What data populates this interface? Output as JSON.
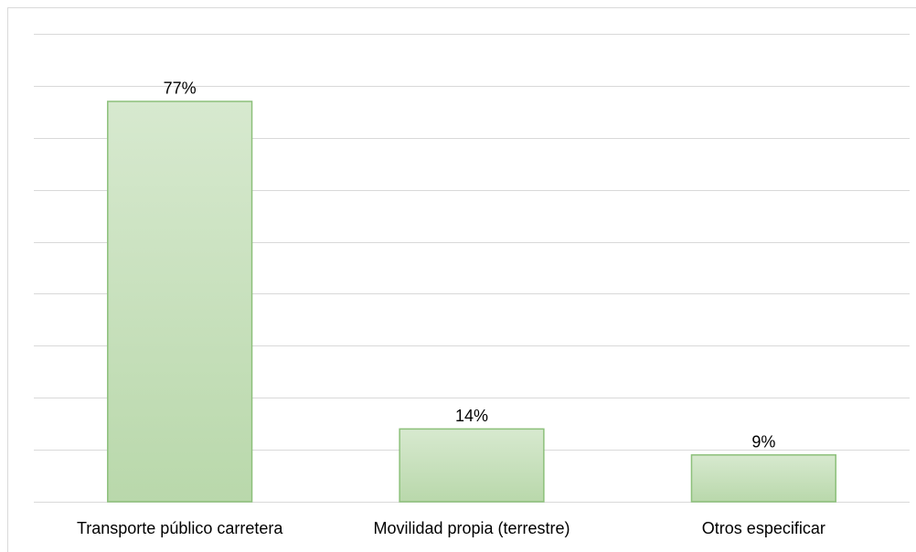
{
  "chart_data": {
    "type": "bar",
    "categories": [
      "Transporte público carretera",
      "Movilidad propia (terrestre)",
      "Otros especificar"
    ],
    "values": [
      77,
      14,
      9
    ],
    "value_labels": [
      "77%",
      "14%",
      "9%"
    ],
    "color": "#c5dfba",
    "ylim": [
      0,
      90
    ],
    "yticks": [
      0,
      10,
      20,
      30,
      40,
      50,
      60,
      70,
      80,
      90
    ],
    "grid": true
  }
}
